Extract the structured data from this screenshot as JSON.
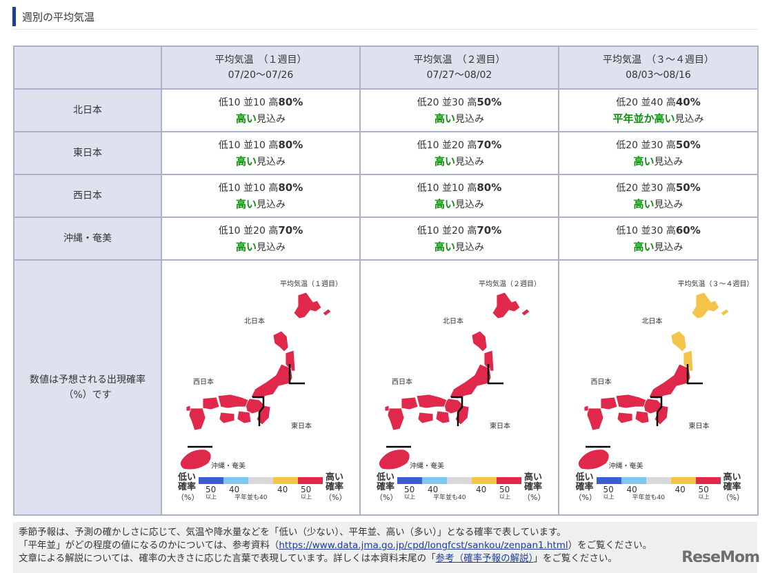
{
  "section": {
    "title": "週別の平均気温"
  },
  "colors": {
    "high": "#e0294a",
    "normal_low": "#f4c44a",
    "normal_high": "#f4c44a",
    "low_strong": "#3b5fd1",
    "low": "#7fc7f3",
    "normal": "#d9d9d9",
    "header_bg": "#dde2ee",
    "accent_green": "#118a11"
  },
  "columns": [
    {
      "title": "平均気温　（１週目）",
      "period": "07/20〜07/26"
    },
    {
      "title": "平均気温　（２週目）",
      "period": "07/27〜08/02"
    },
    {
      "title": "平均気温　（３〜４週目）",
      "period": "08/03〜08/16"
    }
  ],
  "rows": [
    {
      "region": "北日本",
      "cells": [
        {
          "low": "10",
          "normal": "10",
          "high": "80%",
          "outlook": "高い",
          "suffix": "見込み"
        },
        {
          "low": "20",
          "normal": "30",
          "high": "50%",
          "outlook": "高い",
          "suffix": "見込み"
        },
        {
          "low": "20",
          "normal": "40",
          "high": "40%",
          "outlook": "平年並か高い",
          "suffix": "見込み"
        }
      ]
    },
    {
      "region": "東日本",
      "cells": [
        {
          "low": "10",
          "normal": "10",
          "high": "80%",
          "outlook": "高い",
          "suffix": "見込み"
        },
        {
          "low": "10",
          "normal": "20",
          "high": "70%",
          "outlook": "高い",
          "suffix": "見込み"
        },
        {
          "low": "20",
          "normal": "30",
          "high": "50%",
          "outlook": "高い",
          "suffix": "見込み"
        }
      ]
    },
    {
      "region": "西日本",
      "cells": [
        {
          "low": "10",
          "normal": "10",
          "high": "80%",
          "outlook": "高い",
          "suffix": "見込み"
        },
        {
          "low": "10",
          "normal": "10",
          "high": "80%",
          "outlook": "高い",
          "suffix": "見込み"
        },
        {
          "low": "20",
          "normal": "30",
          "high": "50%",
          "outlook": "高い",
          "suffix": "見込み"
        }
      ]
    },
    {
      "region": "沖縄・奄美",
      "cells": [
        {
          "low": "10",
          "normal": "20",
          "high": "70%",
          "outlook": "高い",
          "suffix": "見込み"
        },
        {
          "low": "10",
          "normal": "20",
          "high": "70%",
          "outlook": "高い",
          "suffix": "見込み"
        },
        {
          "low": "10",
          "normal": "30",
          "high": "60%",
          "outlook": "高い",
          "suffix": "見込み"
        }
      ]
    }
  ],
  "labels": {
    "low": "低",
    "normal": "並",
    "high": "高"
  },
  "map_row": {
    "label": "数値は予想される出現確率（%）です"
  },
  "maps": [
    {
      "title": "平均気温（１週目）",
      "north": "high",
      "east": "high",
      "west": "high",
      "okinawa": "high"
    },
    {
      "title": "平均気温（２週目）",
      "north": "high",
      "east": "high",
      "west": "high",
      "okinawa": "high"
    },
    {
      "title": "平均気温（３〜４週目）",
      "north": "normal_high",
      "east": "high",
      "west": "high",
      "okinawa": "high"
    }
  ],
  "map_labels": {
    "north": "北日本",
    "east": "東日本",
    "west": "西日本",
    "okinawa": "沖縄・奄美"
  },
  "legend": {
    "low_title_1": "低い",
    "low_title_2": "確率",
    "low_unit": "（%）",
    "high_title_1": "高い",
    "high_title_2": "確率",
    "high_unit": "（%）",
    "n50a": "50",
    "above_a": "以上",
    "n40a": "40",
    "normal_note": "平年並も40",
    "n40b": "40",
    "n50b": "50",
    "above_b": "以上"
  },
  "note": {
    "line1": "季節予報は、予測の確かしさに応じて、気温や降水量などを「低い（少ない）、平年並、高い（多い）」となる確率で表しています。",
    "line2a": "「平年並」がどの程度の値になるのかについては、参考資料（",
    "link1": "https://www.data.jma.go.jp/cpd/longfcst/sankou/zenpan1.html",
    "line2b": "）をご覧ください。",
    "line3a": "文章による解説については、確率の大きさに応じた言葉で表現しています。詳しくは本資料末尾の「",
    "link2": "参考（確率予報の解説）",
    "line3b": "」をご覧ください。"
  },
  "watermark": "ReseMom"
}
